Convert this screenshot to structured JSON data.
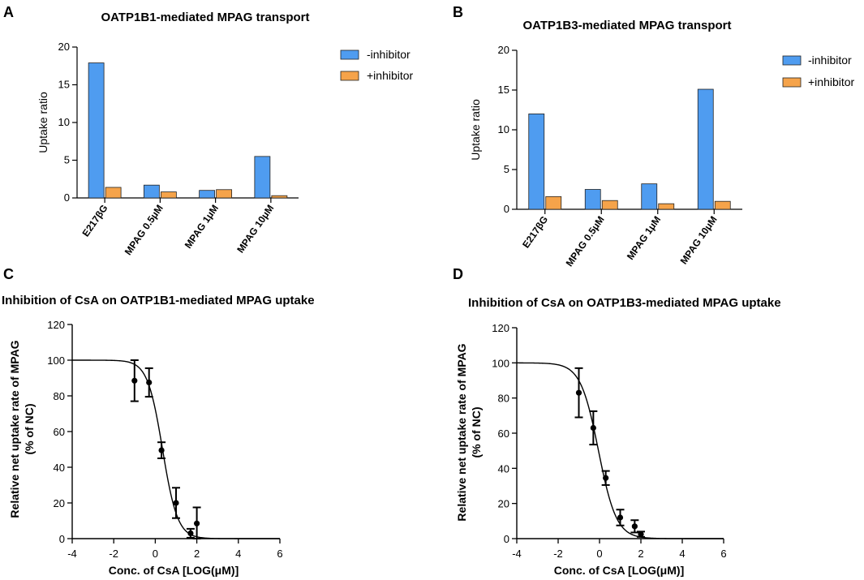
{
  "chart_data": [
    {
      "panel": "A",
      "type": "bar",
      "title": "OATP1B1-mediated MPAG transport",
      "ylabel": "Uptake ratio",
      "xlabel": "",
      "ylim": [
        0,
        20
      ],
      "yticks": [
        0,
        5,
        10,
        15,
        20
      ],
      "categories": [
        "E217βG",
        "MPAG 0.5μM",
        "MPAG 1μM",
        "MPAG 10μM"
      ],
      "series": [
        {
          "name": "-inhibitor",
          "color": "#4f9cf0",
          "values": [
            17.9,
            1.7,
            1.0,
            5.5
          ]
        },
        {
          "name": "+inhibitor",
          "color": "#f5a34a",
          "values": [
            1.4,
            0.8,
            1.1,
            0.3
          ]
        }
      ],
      "legend": "top-right"
    },
    {
      "panel": "B",
      "type": "bar",
      "title": "OATP1B3-mediated MPAG transport",
      "ylabel": "Uptake ratio",
      "xlabel": "",
      "ylim": [
        0,
        20
      ],
      "yticks": [
        0,
        5,
        10,
        15,
        20
      ],
      "categories": [
        "E217βG",
        "MPAG 0.5μM",
        "MPAG 1μM",
        "MPAG 10μM"
      ],
      "series": [
        {
          "name": "-inhibitor",
          "color": "#4f9cf0",
          "values": [
            12.0,
            2.5,
            3.2,
            15.1
          ]
        },
        {
          "name": "+inhibitor",
          "color": "#f5a34a",
          "values": [
            1.6,
            1.1,
            0.7,
            1.0
          ]
        }
      ],
      "legend": "top-right"
    },
    {
      "panel": "C",
      "type": "scatter",
      "title": "Inhibition of CsA on OATP1B1-mediated MPAG uptake",
      "xlabel": "Conc. of CsA [LOG(μM)]",
      "ylabel": "Relative net uptake rate of MPAG",
      "ylabel2": "(% of NC)",
      "xlim": [
        -4,
        6
      ],
      "ylim": [
        0,
        120
      ],
      "xticks": [
        -4,
        -2,
        0,
        2,
        4,
        6
      ],
      "yticks": [
        0,
        20,
        40,
        60,
        80,
        100,
        120
      ],
      "points": [
        {
          "x": -1.0,
          "y": 88.5,
          "err": 11.5
        },
        {
          "x": -0.3,
          "y": 87.5,
          "err": 8.0
        },
        {
          "x": 0.3,
          "y": 49.5,
          "err": 4.5
        },
        {
          "x": 1.0,
          "y": 20.0,
          "err": 8.5
        },
        {
          "x": 1.7,
          "y": 3.0,
          "err": 2.5
        },
        {
          "x": 2.0,
          "y": 8.5,
          "err": 9.0
        }
      ],
      "fit": {
        "top": 100,
        "bottom": 0,
        "logIC50": 0.35,
        "hill": 1.2
      }
    },
    {
      "panel": "D",
      "type": "scatter",
      "title": "Inhibition of  CsA on OATP1B3-mediated MPAG uptake",
      "xlabel": "Conc. of  CsA [LOG(μM)]",
      "ylabel": "Relative net uptake rate of MPAG",
      "ylabel2": "(% of NC)",
      "xlim": [
        -4,
        6
      ],
      "ylim": [
        0,
        120
      ],
      "xticks": [
        -4,
        -2,
        0,
        2,
        4,
        6
      ],
      "yticks": [
        0,
        20,
        40,
        60,
        80,
        100,
        120
      ],
      "points": [
        {
          "x": -1.0,
          "y": 83.0,
          "err": 14.0
        },
        {
          "x": -0.3,
          "y": 63.0,
          "err": 9.5
        },
        {
          "x": 0.3,
          "y": 34.5,
          "err": 4.0
        },
        {
          "x": 1.0,
          "y": 12.0,
          "err": 4.5
        },
        {
          "x": 1.7,
          "y": 7.0,
          "err": 3.5
        },
        {
          "x": 2.0,
          "y": 2.5,
          "err": 1.5
        }
      ],
      "fit": {
        "top": 100,
        "bottom": 0,
        "logIC50": -0.05,
        "hill": 1.0
      }
    }
  ]
}
